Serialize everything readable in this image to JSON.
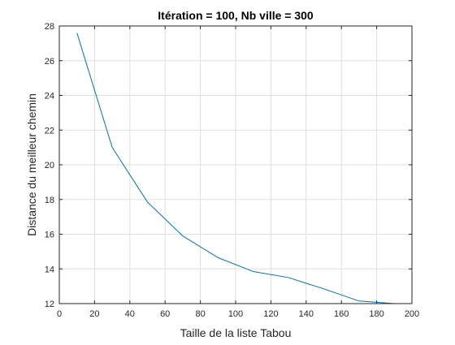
{
  "chart_data": {
    "type": "line",
    "title": "Itération = 100, Nb ville = 300",
    "xlabel": "Taille de la liste Tabou",
    "ylabel": "Distance du meilleur chemin",
    "xlim": [
      0,
      200
    ],
    "ylim": [
      12,
      28
    ],
    "xticks": [
      0,
      20,
      40,
      60,
      80,
      100,
      120,
      140,
      160,
      180,
      200
    ],
    "yticks": [
      12,
      14,
      16,
      18,
      20,
      22,
      24,
      26,
      28
    ],
    "grid": true,
    "series": [
      {
        "x": [
          10,
          30,
          50,
          70,
          90,
          110,
          130,
          150,
          170,
          190
        ],
        "y": [
          27.6,
          21.0,
          17.85,
          15.9,
          14.65,
          13.85,
          13.5,
          12.85,
          12.15,
          12.0
        ]
      }
    ],
    "colors": {
      "line": "#0072BD",
      "grid": "#dfdfdf",
      "axis": "#262626"
    }
  }
}
